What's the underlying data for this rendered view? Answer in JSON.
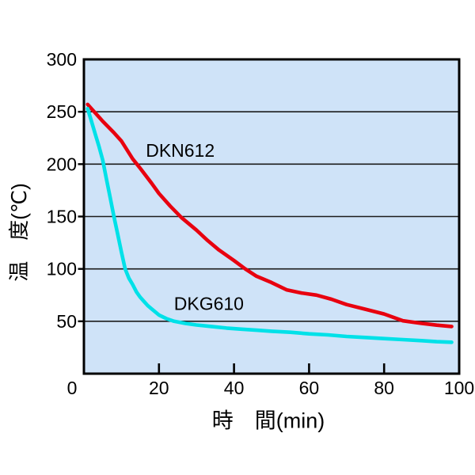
{
  "figure": {
    "background": "#ffffff"
  },
  "chart_data": {
    "type": "line",
    "title": "",
    "xlabel": "時　間(min)",
    "ylabel": "温　度(℃)",
    "xlim": [
      0,
      100
    ],
    "ylim": [
      0,
      300
    ],
    "x_ticks": [
      0,
      20,
      40,
      60,
      80,
      100
    ],
    "y_ticks": [
      50,
      100,
      150,
      200,
      250,
      300
    ],
    "grid": "horizontal-only",
    "legend_position": "inline-curve-labels",
    "plot_bg": "#cfe3f8",
    "grid_color": "#1c1c1c",
    "axis_color": "#000000",
    "tick_label_color": "#000000",
    "series": [
      {
        "name": "DKN612",
        "color": "#e8000f",
        "label_xy": [
          16.5,
          213
        ],
        "points": [
          [
            1,
            257
          ],
          [
            3,
            249
          ],
          [
            5,
            241
          ],
          [
            8,
            230
          ],
          [
            10,
            222
          ],
          [
            13,
            205
          ],
          [
            15,
            196
          ],
          [
            18,
            182
          ],
          [
            20,
            172
          ],
          [
            23,
            160
          ],
          [
            26,
            149
          ],
          [
            30,
            137
          ],
          [
            33,
            127
          ],
          [
            36,
            118
          ],
          [
            40,
            108
          ],
          [
            43,
            100
          ],
          [
            46,
            93
          ],
          [
            50,
            87
          ],
          [
            54,
            80
          ],
          [
            58,
            77
          ],
          [
            62,
            75
          ],
          [
            66,
            71
          ],
          [
            70,
            66
          ],
          [
            75,
            61.5
          ],
          [
            80,
            57
          ],
          [
            85,
            50.5
          ],
          [
            90,
            48
          ],
          [
            94,
            46.3
          ],
          [
            98,
            45
          ]
        ]
      },
      {
        "name": "DKG610",
        "color": "#00e1e8",
        "label_xy": [
          24,
          67
        ],
        "points": [
          [
            1,
            253
          ],
          [
            2,
            241
          ],
          [
            3,
            229
          ],
          [
            4,
            217
          ],
          [
            5,
            204
          ],
          [
            6,
            186
          ],
          [
            7,
            168
          ],
          [
            8,
            150
          ],
          [
            9,
            133
          ],
          [
            10,
            116
          ],
          [
            11,
            100
          ],
          [
            12,
            91
          ],
          [
            13,
            85
          ],
          [
            14,
            78
          ],
          [
            15,
            73
          ],
          [
            16,
            69
          ],
          [
            17,
            65
          ],
          [
            18,
            62
          ],
          [
            20,
            56
          ],
          [
            22,
            52.5
          ],
          [
            24,
            50
          ],
          [
            27,
            48
          ],
          [
            30,
            46.5
          ],
          [
            34,
            45
          ],
          [
            38,
            43.5
          ],
          [
            42,
            42.5
          ],
          [
            46,
            41.5
          ],
          [
            50,
            40.5
          ],
          [
            55,
            39.5
          ],
          [
            60,
            38
          ],
          [
            65,
            37
          ],
          [
            70,
            35.5
          ],
          [
            75,
            34.5
          ],
          [
            80,
            33.5
          ],
          [
            85,
            32.5
          ],
          [
            90,
            31.5
          ],
          [
            94,
            30.5
          ],
          [
            98,
            30
          ]
        ]
      }
    ]
  }
}
